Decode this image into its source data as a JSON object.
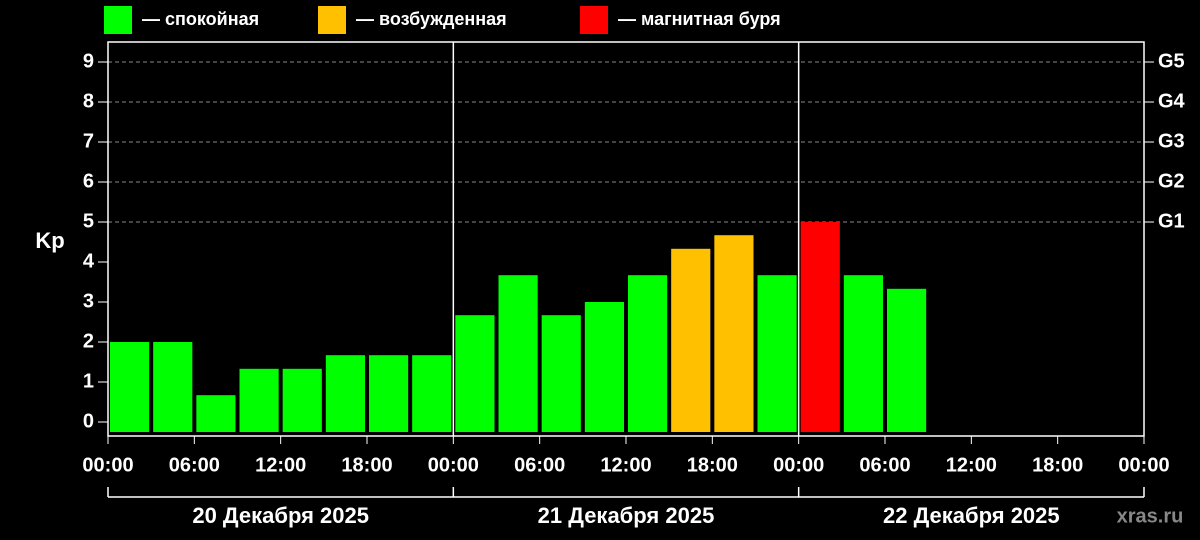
{
  "chart_data": {
    "type": "bar",
    "y_label": "Kp",
    "watermark": "xras.ru",
    "legend": [
      {
        "name": "— спокойная",
        "color": "#00ff00"
      },
      {
        "name": "— возбужденная",
        "color": "#ffc000"
      },
      {
        "name": "— магнитная буря",
        "color": "#ff0000"
      }
    ],
    "x": [
      0,
      3,
      6,
      9,
      12,
      15,
      18,
      21,
      24,
      27,
      30,
      33,
      36,
      39,
      42,
      45,
      48,
      51,
      54
    ],
    "values": [
      2,
      2,
      0.67,
      1.33,
      1.33,
      1.67,
      1.67,
      1.67,
      2.67,
      3.67,
      2.67,
      3,
      3.67,
      4.33,
      4.67,
      3.67,
      5,
      3.67,
      3.33
    ],
    "colors": [
      "#00ff00",
      "#00ff00",
      "#00ff00",
      "#00ff00",
      "#00ff00",
      "#00ff00",
      "#00ff00",
      "#00ff00",
      "#00ff00",
      "#00ff00",
      "#00ff00",
      "#00ff00",
      "#00ff00",
      "#ffc000",
      "#ffc000",
      "#00ff00",
      "#ff0000",
      "#00ff00",
      "#00ff00"
    ],
    "bar_width": 3,
    "xlim": [
      0,
      72
    ],
    "xticks": [
      {
        "value": 0,
        "label": "00:00"
      },
      {
        "value": 6,
        "label": "06:00"
      },
      {
        "value": 12,
        "label": "12:00"
      },
      {
        "value": 18,
        "label": "18:00"
      },
      {
        "value": 24,
        "label": "00:00"
      },
      {
        "value": 30,
        "label": "06:00"
      },
      {
        "value": 36,
        "label": "12:00"
      },
      {
        "value": 42,
        "label": "18:00"
      },
      {
        "value": 48,
        "label": "00:00"
      },
      {
        "value": 54,
        "label": "06:00"
      },
      {
        "value": 60,
        "label": "12:00"
      },
      {
        "value": 66,
        "label": "18:00"
      },
      {
        "value": 72,
        "label": "00:00"
      }
    ],
    "day_separators": [
      24,
      48
    ],
    "days": [
      "20 Декабря 2025",
      "21 Декабря 2025",
      "22 Декабря 2025"
    ],
    "ylim": [
      -0.35,
      9.5
    ],
    "yticks": [
      0,
      1,
      2,
      3,
      4,
      5,
      6,
      7,
      8,
      9
    ],
    "y2lim": [
      -0.35,
      9.5
    ],
    "y2ticks": [
      {
        "value": 5,
        "label": "G1"
      },
      {
        "value": 6,
        "label": "G2"
      },
      {
        "value": 7,
        "label": "G3"
      },
      {
        "value": 8,
        "label": "G4"
      },
      {
        "value": 9,
        "label": "G5"
      }
    ],
    "grid": true
  }
}
